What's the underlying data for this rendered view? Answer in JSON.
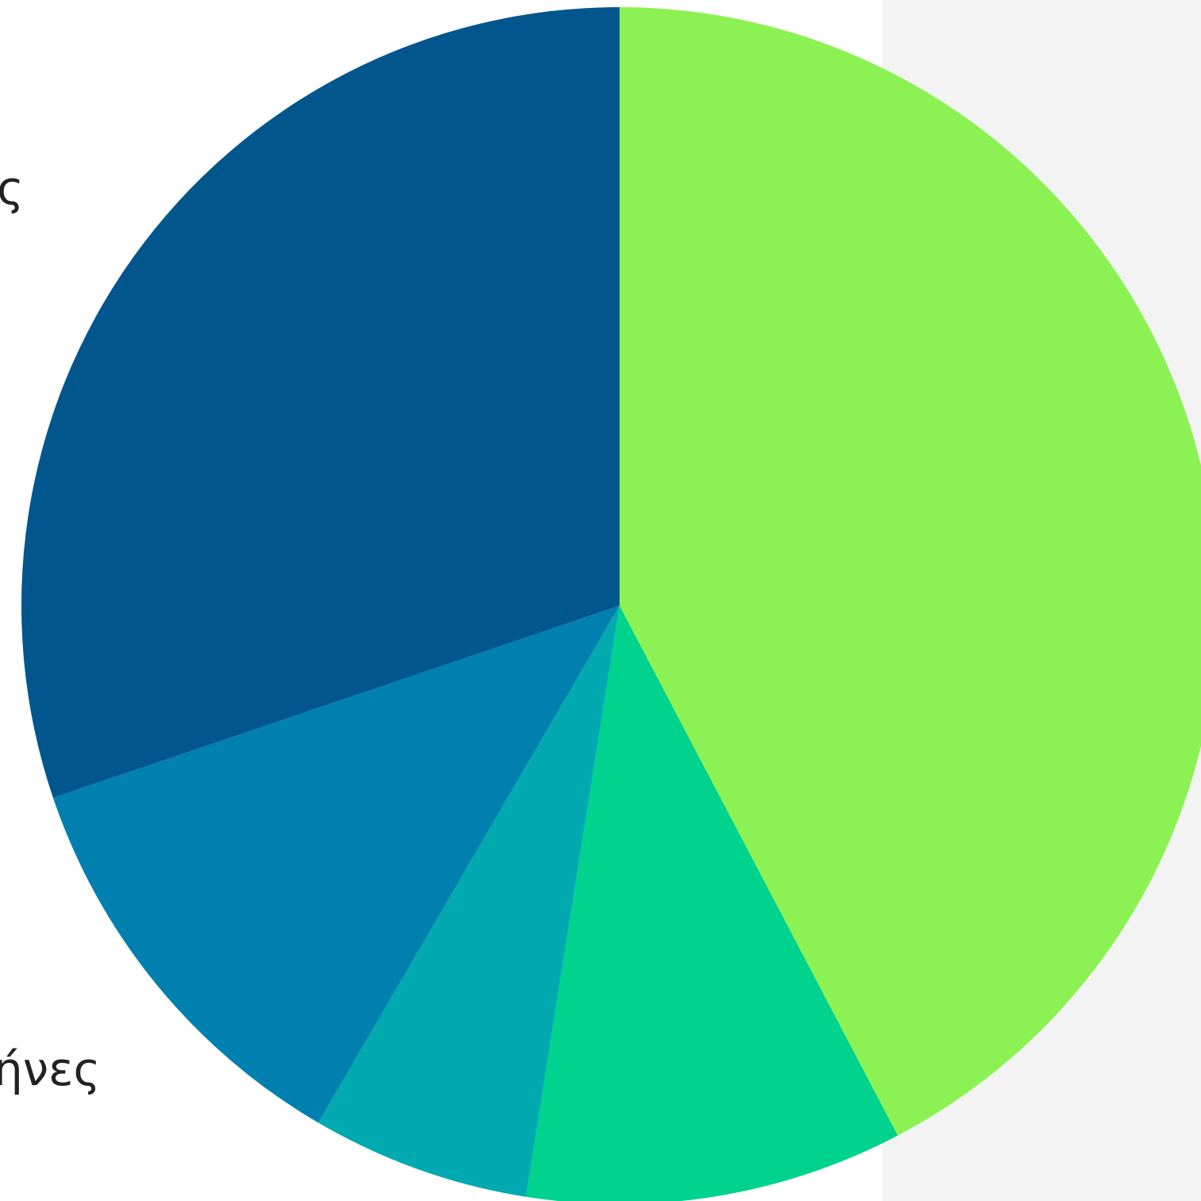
{
  "colors": {
    "background": "#ffffff",
    "side_panel": "#f3f3f3",
    "label_text": "#222222"
  },
  "chart_data": {
    "type": "pie",
    "title": "",
    "start_angle_deg": 0,
    "direction": "clockwise",
    "slices": [
      {
        "label": "",
        "value": 42.3,
        "color": "#8cf253"
      },
      {
        "label": "",
        "value": 10.2,
        "color": "#00d38d"
      },
      {
        "label": "",
        "value": 5.9,
        "color": "#00aab0"
      },
      {
        "label": "",
        "value": 11.4,
        "color": "#0080ae"
      },
      {
        "label": "",
        "value": 30.2,
        "color": "#00568d"
      }
    ],
    "visible_labels": [
      {
        "text": "ς",
        "slice_index": 4
      },
      {
        "text": "ήνες",
        "slice_index": 3
      }
    ]
  }
}
